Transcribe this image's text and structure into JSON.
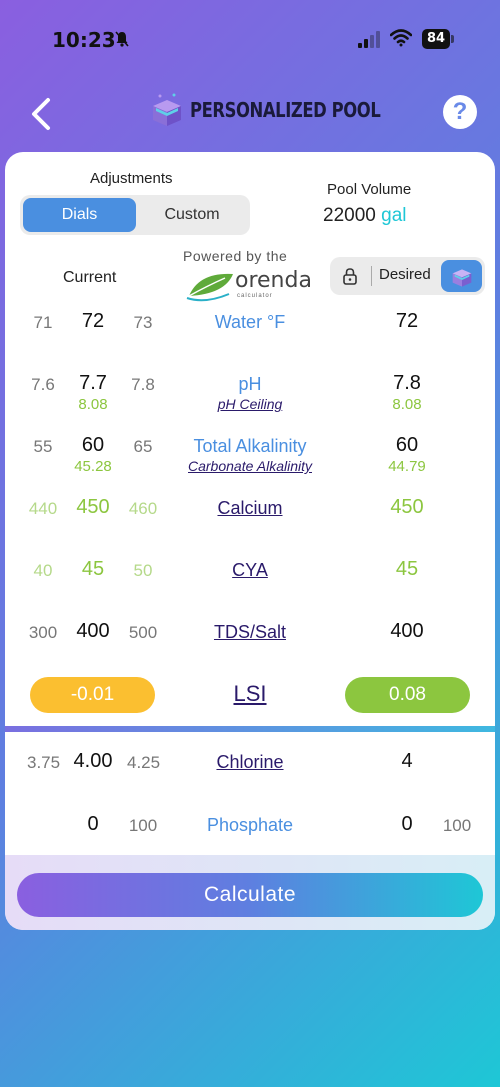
{
  "status": {
    "time": "10:23",
    "battery": "84"
  },
  "header": {
    "title": "PERSONALIZED POOL",
    "help": "?"
  },
  "adjustments": {
    "label": "Adjustments",
    "dials": "Dials",
    "custom": "Custom"
  },
  "pool_volume": {
    "label": "Pool Volume",
    "value": "22000",
    "unit": "gal"
  },
  "columns": {
    "current": "Current",
    "desired": "Desired"
  },
  "powered_by": {
    "text": "Powered by the",
    "brand": "orenda",
    "brand_sub": "calculator"
  },
  "rows": {
    "water": {
      "lo": "71",
      "cur": "72",
      "hi": "73",
      "label": "Water °F",
      "des": "72"
    },
    "ph": {
      "lo": "7.6",
      "cur": "7.7",
      "hi": "7.8",
      "sub": "8.08",
      "label": "pH",
      "label_sub": "pH Ceiling",
      "des": "7.8",
      "des_sub": "8.08"
    },
    "ta": {
      "lo": "55",
      "cur": "60",
      "hi": "65",
      "sub": "45.28",
      "label": "Total Alkalinity",
      "label_sub": "Carbonate Alkalinity",
      "des": "60",
      "des_sub": "44.79"
    },
    "calcium": {
      "lo": "440",
      "cur": "450",
      "hi": "460",
      "label": "Calcium",
      "des": "450"
    },
    "cya": {
      "lo": "40",
      "cur": "45",
      "hi": "50",
      "label": "CYA",
      "des": "45"
    },
    "tds": {
      "lo": "300",
      "cur": "400",
      "hi": "500",
      "label": "TDS/Salt",
      "des": "400"
    },
    "chlorine": {
      "lo": "3.75",
      "cur": "4.00",
      "hi": "4.25",
      "label": "Chlorine",
      "des": "4"
    },
    "phosphate": {
      "cur": "0",
      "hi": "100",
      "label": "Phosphate",
      "des": "0",
      "des_hi": "100"
    }
  },
  "lsi": {
    "label": "LSI",
    "current": "-0.01",
    "desired": "0.08"
  },
  "calculate_label": "Calculate",
  "colors": {
    "accent_blue": "#4a8fe0",
    "accent_teal": "#1ec7d6",
    "lime": "#8cc63f",
    "amber": "#fbbf30",
    "navy": "#2a1a6a"
  }
}
